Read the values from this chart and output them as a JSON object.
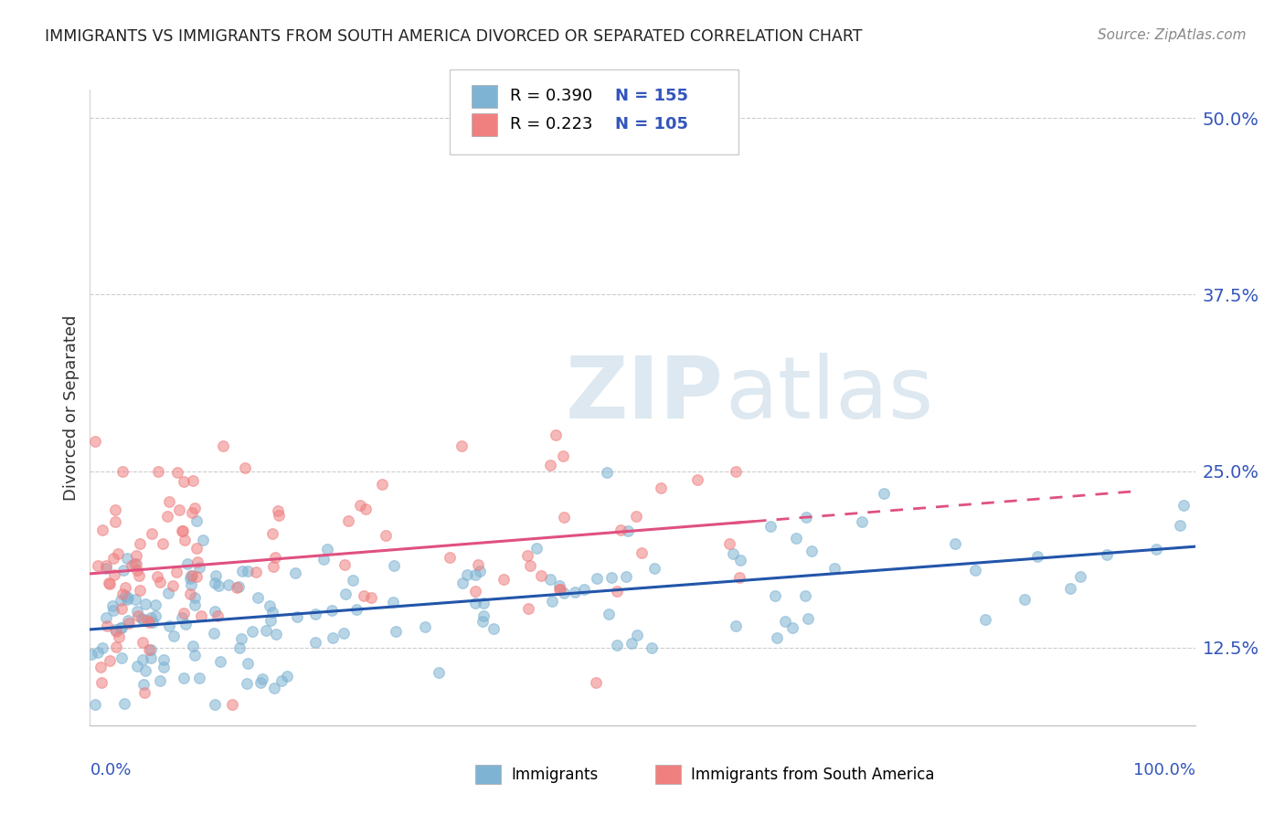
{
  "title": "IMMIGRANTS VS IMMIGRANTS FROM SOUTH AMERICA DIVORCED OR SEPARATED CORRELATION CHART",
  "source": "Source: ZipAtlas.com",
  "ylabel": "Divorced or Separated",
  "ylabel_ticks": [
    "12.5%",
    "25.0%",
    "37.5%",
    "50.0%"
  ],
  "ylabel_tick_vals": [
    0.125,
    0.25,
    0.375,
    0.5
  ],
  "legend_blue_r": "R = 0.390",
  "legend_blue_n": "N = 155",
  "legend_pink_r": "R = 0.223",
  "legend_pink_n": "N = 105",
  "blue_color": "#7FB3D3",
  "pink_color": "#F08080",
  "blue_line_color": "#2255AA",
  "pink_line_color": "#E05080",
  "watermark_zip": "ZIP",
  "watermark_atlas": "atlas",
  "xlim": [
    0.0,
    1.0
  ],
  "ylim": [
    0.07,
    0.52
  ],
  "title_color": "#222222",
  "source_color": "#888888",
  "tick_color": "#3355BB",
  "axis_label_color": "#333333",
  "grid_color": "#CCCCCC"
}
